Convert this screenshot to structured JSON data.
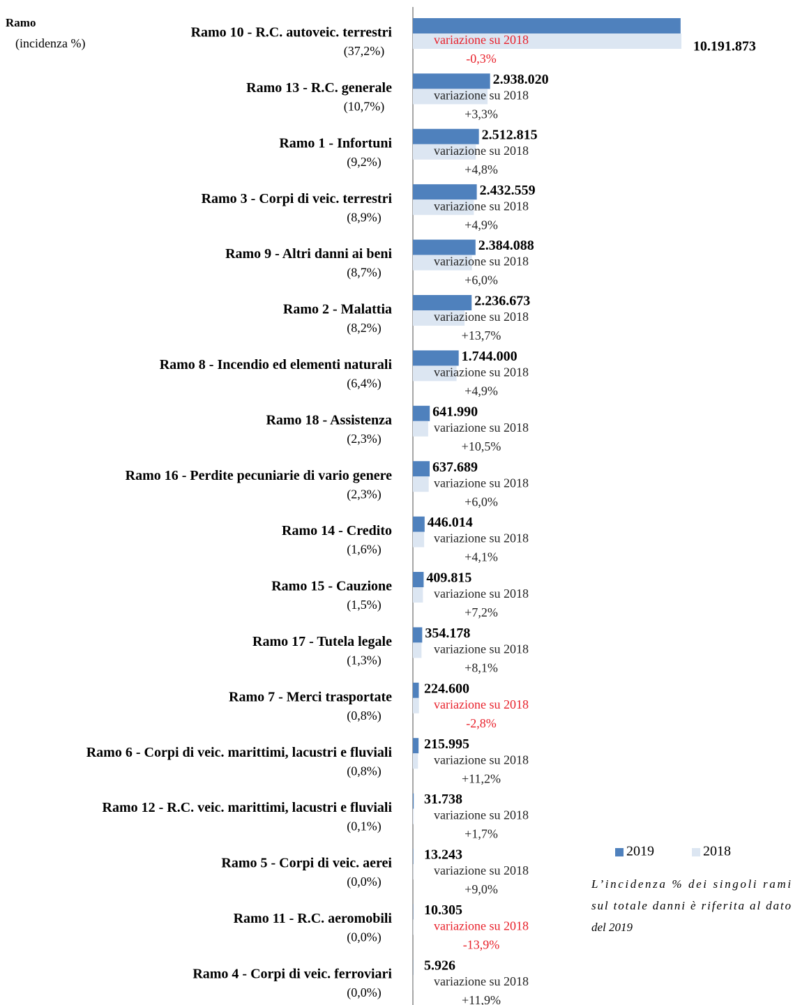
{
  "chart_data": {
    "type": "bar",
    "orientation": "horizontal",
    "header": {
      "title": "Ramo",
      "subtitle": "(incidenza %)"
    },
    "categories": [
      "Ramo 10 - R.C. autoveic. terrestri",
      "Ramo 13 - R.C. generale",
      "Ramo 1 - Infortuni",
      "Ramo 3 - Corpi di veic. terrestri",
      "Ramo 9 - Altri danni ai beni",
      "Ramo 2 - Malattia",
      "Ramo 8 - Incendio ed elementi naturali",
      "Ramo 18 - Assistenza",
      "Ramo 16 - Perdite pecuniarie di vario genere",
      "Ramo 14 - Credito",
      "Ramo 15 - Cauzione",
      "Ramo 17 - Tutela legale",
      "Ramo 7 - Merci trasportate",
      "Ramo 6 - Corpi di veic. marittimi, lacustri e fluviali",
      "Ramo 12 - R.C. veic. marittimi, lacustri e fluviali",
      "Ramo 5 - Corpi di veic. aerei",
      "Ramo 11 - R.C. aeromobili",
      "Ramo 4 - Corpi di veic. ferroviari"
    ],
    "incidence_labels": [
      "(37,2%)",
      "(10,7%)",
      "(9,2%)",
      "(8,9%)",
      "(8,7%)",
      "(8,2%)",
      "(6,4%)",
      "(2,3%)",
      "(2,3%)",
      "(1,6%)",
      "(1,5%)",
      "(1,3%)",
      "(0,8%)",
      "(0,8%)",
      "(0,1%)",
      "(0,0%)",
      "(0,0%)",
      "(0,0%)"
    ],
    "series": [
      {
        "name": "2019",
        "color": "#4f81bd",
        "values": [
          10191873,
          2938020,
          2512815,
          2432559,
          2384088,
          2236673,
          1744000,
          641990,
          637689,
          446014,
          409815,
          354178,
          224600,
          215995,
          31738,
          13243,
          10305,
          5926
        ],
        "value_labels": [
          "10.191.873",
          "2.938.020",
          "2.512.815",
          "2.432.559",
          "2.384.088",
          "2.236.673",
          "1.744.000",
          "641.990",
          "637.689",
          "446.014",
          "409.815",
          "354.178",
          "224.600",
          "215.995",
          "31.738",
          "13.243",
          "10.305",
          "5.926"
        ]
      },
      {
        "name": "2018",
        "color": "#dce6f2",
        "values": [
          10223000,
          2844000,
          2398000,
          2319000,
          2249000,
          1967000,
          1663000,
          581000,
          602000,
          428000,
          382000,
          328000,
          231000,
          194000,
          31200,
          12150,
          11970,
          5300
        ]
      }
    ],
    "variation_title": "variazione su 2018",
    "variations": [
      -0.3,
      3.3,
      4.8,
      4.9,
      6.0,
      13.7,
      4.9,
      10.5,
      6.0,
      4.1,
      7.2,
      8.1,
      -2.8,
      11.2,
      1.7,
      9.0,
      -13.9,
      11.9
    ],
    "variation_labels": [
      "-0,3%",
      "+3,3%",
      "+4,8%",
      "+4,9%",
      "+6,0%",
      "+13,7%",
      "+4,9%",
      "+10,5%",
      "+6,0%",
      "+4,1%",
      "+7,2%",
      "+8,1%",
      "-2,8%",
      "+11,2%",
      "+1,7%",
      "+9,0%",
      "-13,9%",
      "+11,9%"
    ],
    "legend_position": "lower right",
    "note": [
      "L’incidenza % dei singoli rami",
      "sul totale danni è riferita al dato",
      "del 2019"
    ]
  }
}
